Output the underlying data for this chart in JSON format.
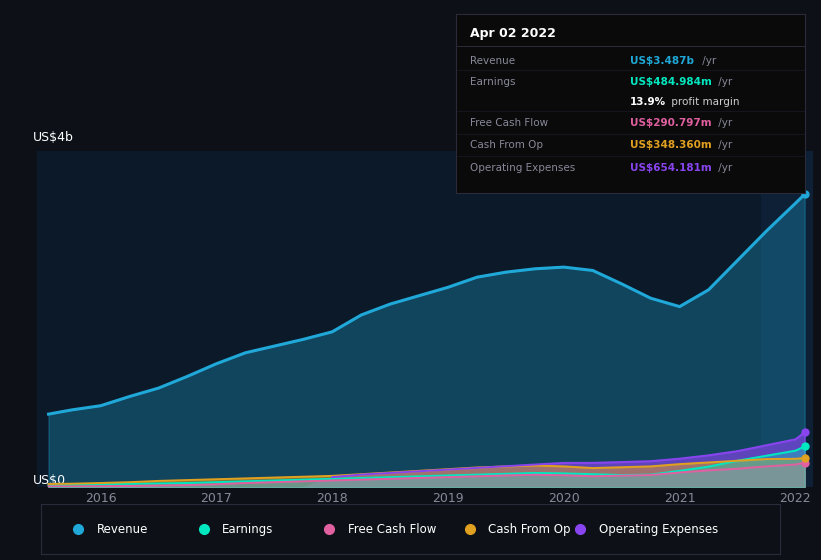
{
  "background_color": "#0d1117",
  "plot_bg_color": "#0b1929",
  "years": [
    2015.55,
    2015.75,
    2016.0,
    2016.25,
    2016.5,
    2016.75,
    2017.0,
    2017.25,
    2017.5,
    2017.75,
    2018.0,
    2018.25,
    2018.5,
    2018.75,
    2019.0,
    2019.25,
    2019.5,
    2019.75,
    2020.0,
    2020.25,
    2020.5,
    2020.75,
    2021.0,
    2021.25,
    2021.5,
    2021.75,
    2022.0,
    2022.08
  ],
  "revenue": [
    0.87,
    0.92,
    0.97,
    1.08,
    1.18,
    1.32,
    1.47,
    1.6,
    1.68,
    1.76,
    1.85,
    2.05,
    2.18,
    2.28,
    2.38,
    2.5,
    2.56,
    2.6,
    2.62,
    2.58,
    2.42,
    2.25,
    2.15,
    2.35,
    2.7,
    3.05,
    3.38,
    3.487
  ],
  "earnings": [
    0.025,
    0.03,
    0.035,
    0.04,
    0.045,
    0.05,
    0.06,
    0.07,
    0.08,
    0.09,
    0.1,
    0.11,
    0.12,
    0.13,
    0.14,
    0.15,
    0.16,
    0.17,
    0.165,
    0.155,
    0.145,
    0.15,
    0.195,
    0.245,
    0.315,
    0.375,
    0.435,
    0.485
  ],
  "free_cash_flow": [
    0.01,
    0.01,
    0.012,
    0.015,
    0.02,
    0.025,
    0.035,
    0.05,
    0.06,
    0.07,
    0.08,
    0.09,
    0.1,
    0.11,
    0.12,
    0.13,
    0.14,
    0.148,
    0.142,
    0.13,
    0.138,
    0.145,
    0.175,
    0.2,
    0.22,
    0.248,
    0.27,
    0.291
  ],
  "cash_from_op": [
    0.038,
    0.042,
    0.05,
    0.06,
    0.075,
    0.085,
    0.095,
    0.105,
    0.115,
    0.125,
    0.135,
    0.155,
    0.175,
    0.195,
    0.215,
    0.235,
    0.248,
    0.258,
    0.248,
    0.228,
    0.238,
    0.248,
    0.275,
    0.295,
    0.315,
    0.335,
    0.338,
    0.348
  ],
  "operating_expenses": [
    0.0,
    0.0,
    0.0,
    0.0,
    0.0,
    0.0,
    0.0,
    0.0,
    0.0,
    0.0,
    0.12,
    0.15,
    0.17,
    0.19,
    0.21,
    0.23,
    0.25,
    0.27,
    0.29,
    0.29,
    0.3,
    0.31,
    0.34,
    0.38,
    0.43,
    0.5,
    0.57,
    0.654
  ],
  "revenue_color": "#1fa8d8",
  "earnings_color": "#00e8c0",
  "free_cash_flow_color": "#e060a0",
  "cash_from_op_color": "#e0a020",
  "operating_expenses_color": "#8844ee",
  "grid_color": "#1a2e45",
  "text_color": "#888899",
  "highlight_start": 2021.7,
  "highlight_end": 2022.15,
  "ylim": [
    0,
    4.0
  ],
  "xlim_start": 2015.45,
  "xlim_end": 2022.15,
  "xtick_positions": [
    2016,
    2017,
    2018,
    2019,
    2020,
    2021,
    2022
  ],
  "xtick_labels": [
    "2016",
    "2017",
    "2018",
    "2019",
    "2020",
    "2021",
    "2022"
  ],
  "tooltip": {
    "date": "Apr 02 2022",
    "rows": [
      {
        "label": "Revenue",
        "value": "US$3.487b",
        "unit": " /yr",
        "color": "#1fa8d8",
        "bold_value": true
      },
      {
        "label": "Earnings",
        "value": "US$484.984m",
        "unit": " /yr",
        "color": "#00e8c0",
        "bold_value": true
      },
      {
        "label": "",
        "value": "13.9%",
        "unit": " profit margin",
        "color": "white",
        "bold_value": true
      },
      {
        "label": "Free Cash Flow",
        "value": "US$290.797m",
        "unit": " /yr",
        "color": "#e060a0",
        "bold_value": true
      },
      {
        "label": "Cash From Op",
        "value": "US$348.360m",
        "unit": " /yr",
        "color": "#e0a020",
        "bold_value": true
      },
      {
        "label": "Operating Expenses",
        "value": "US$654.181m",
        "unit": " /yr",
        "color": "#8844ee",
        "bold_value": true
      }
    ]
  },
  "legend": [
    {
      "label": "Revenue",
      "color": "#1fa8d8"
    },
    {
      "label": "Earnings",
      "color": "#00e8c0"
    },
    {
      "label": "Free Cash Flow",
      "color": "#e060a0"
    },
    {
      "label": "Cash From Op",
      "color": "#e0a020"
    },
    {
      "label": "Operating Expenses",
      "color": "#8844ee"
    }
  ]
}
